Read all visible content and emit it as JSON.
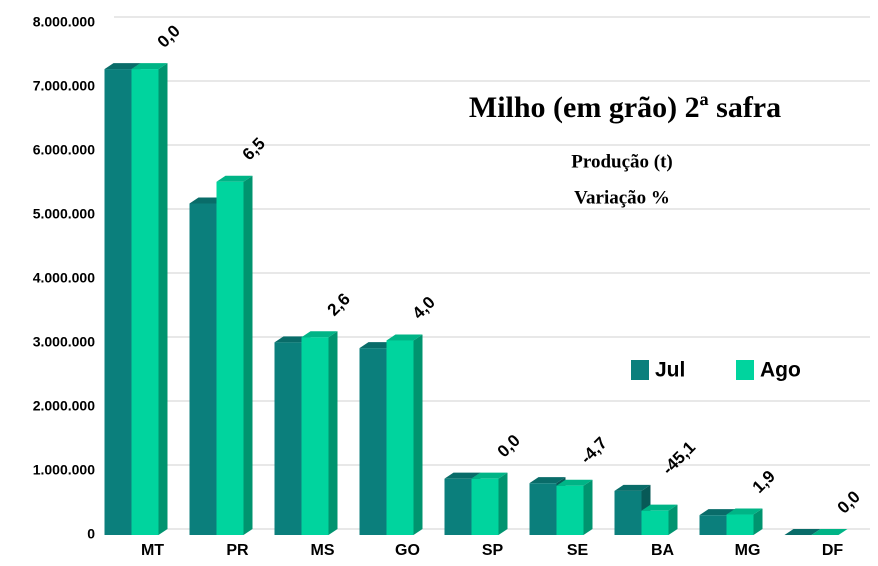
{
  "chart_data": {
    "type": "bar3d",
    "title": "Milho (em grão) 2ª safra",
    "subtitle": [
      "Produção (t)",
      "Variação %"
    ],
    "categories": [
      "MT",
      "PR",
      "MS",
      "GO",
      "SP",
      "SE",
      "BA",
      "MG",
      "DF"
    ],
    "series": [
      {
        "name": "Jul",
        "color": "#0b7f7c",
        "values": [
          7280000,
          5180000,
          3010000,
          2920000,
          880000,
          810000,
          690000,
          310000,
          0
        ]
      },
      {
        "name": "Ago",
        "color": "#00d49e",
        "values": [
          7280000,
          5520000,
          3090000,
          3040000,
          880000,
          770000,
          380000,
          320000,
          0
        ]
      }
    ],
    "variation": {
      "values": [
        0,
        6.5,
        2.6,
        4.0,
        0,
        -4.7,
        -45.1,
        1.9,
        0
      ],
      "value_labels": [
        "0,0",
        "6,5",
        "2,6",
        "4,0",
        "0,0",
        "-4,7",
        "-45,1",
        "1,9",
        "0,0"
      ]
    },
    "ylim": [
      0,
      8000000
    ],
    "yticks": [
      0,
      {
        "value": 1000000,
        "label": "1.000.000"
      },
      {
        "value": 2000000,
        "label": "2.000.000"
      },
      {
        "value": 3000000,
        "label": "3.000.000"
      },
      {
        "value": 4000000,
        "label": "4.000.000"
      },
      {
        "value": 5000000,
        "label": "5.000.000"
      },
      {
        "value": 6000000,
        "label": "6.000.000"
      },
      {
        "value": 7000000,
        "label": "7.000.000"
      },
      {
        "value": 8000000,
        "label": "8.000.000"
      }
    ],
    "grid": true,
    "legend": "right"
  }
}
